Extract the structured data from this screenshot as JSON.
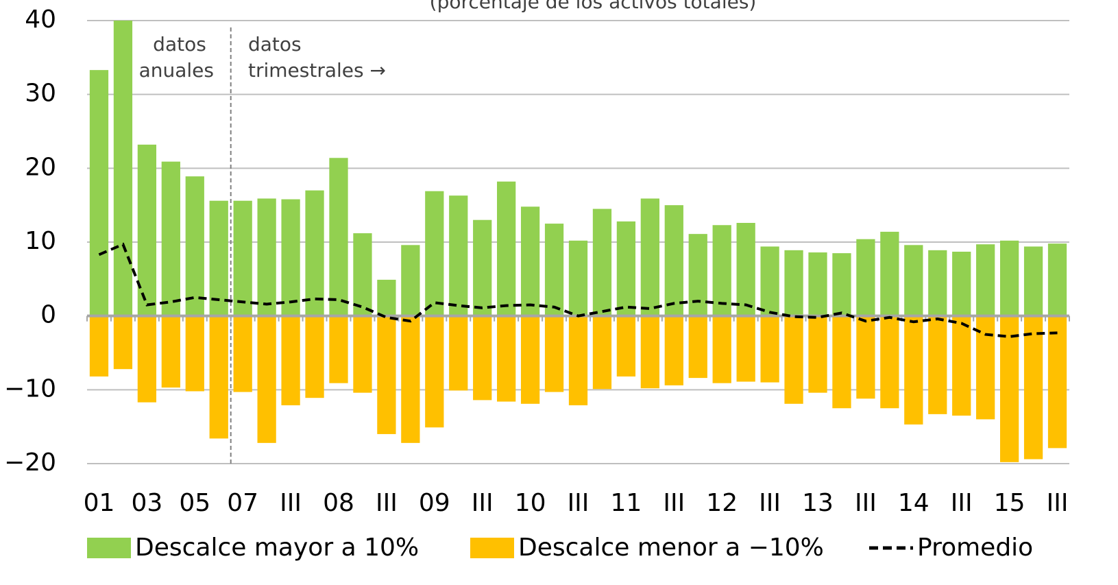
{
  "chart_data": {
    "type": "bar",
    "subtitle": "(porcentaje de los activos totales)",
    "categories": [
      "01",
      null,
      "03",
      null,
      "05",
      null,
      "07",
      null,
      "III",
      null,
      "08",
      null,
      "III",
      null,
      "09",
      null,
      "III",
      null,
      "10",
      null,
      "III",
      null,
      "11",
      null,
      "III",
      null,
      "12",
      null,
      "III",
      null,
      "13",
      null,
      "III",
      null,
      "14",
      null,
      "III",
      null,
      "15",
      null,
      "III"
    ],
    "series": [
      {
        "name": "Descalce mayor a 10%",
        "color": "#92d050",
        "kind": "bar",
        "values": [
          33.3,
          40,
          23.2,
          20.9,
          18.9,
          15.6,
          15.6,
          15.9,
          15.8,
          17,
          21.4,
          11.2,
          4.9,
          9.6,
          16.9,
          16.3,
          13,
          18.2,
          14.8,
          12.5,
          10.2,
          14.5,
          12.8,
          15.9,
          15,
          11.1,
          12.3,
          12.6,
          9.4,
          8.9,
          8.6,
          8.5,
          10.4,
          11.4,
          9.6,
          8.9,
          8.7,
          9.7,
          10.2,
          9.4,
          9.8
        ]
      },
      {
        "name": "Descalce menor a −10%",
        "color": "#ffc000",
        "kind": "bar",
        "values": [
          -8.2,
          -7.2,
          -11.7,
          -9.7,
          -10.2,
          -16.6,
          -10.3,
          -17.2,
          -12.1,
          -11.1,
          -9.1,
          -10.4,
          -16,
          -17.2,
          -15.1,
          -10.1,
          -11.4,
          -11.6,
          -11.9,
          -10.3,
          -12.1,
          -9.9,
          -8.2,
          -9.8,
          -9.4,
          -8.4,
          -9.1,
          -8.9,
          -9,
          -11.9,
          -10.4,
          -12.5,
          -11.2,
          -12.5,
          -14.7,
          -13.3,
          -13.5,
          -14,
          -19.8,
          -19.4,
          -17.9
        ]
      },
      {
        "name": "Promedio",
        "color": "#000000",
        "kind": "line",
        "values": [
          8.3,
          9.7,
          1.5,
          1.9,
          2.5,
          2.2,
          1.9,
          1.6,
          1.9,
          2.3,
          2.2,
          1.2,
          -0.2,
          -0.7,
          1.8,
          1.4,
          1.1,
          1.4,
          1.5,
          1.2,
          0,
          0.6,
          1.2,
          1,
          1.7,
          2,
          1.7,
          1.5,
          0.5,
          -0.1,
          -0.2,
          0.4,
          -0.7,
          -0.2,
          -0.8,
          -0.4,
          -1,
          -2.5,
          -2.8,
          -2.4,
          -2.3
        ]
      }
    ],
    "ylim": [
      -20,
      40
    ],
    "yticks": [
      {
        "value": -20,
        "label": "−20"
      },
      {
        "value": -10,
        "label": "−10"
      },
      0,
      10,
      20,
      30,
      40
    ],
    "grid": true,
    "annotations": [
      [
        "datos",
        "← anuales"
      ],
      [
        "datos",
        "trimestrales →"
      ]
    ]
  }
}
